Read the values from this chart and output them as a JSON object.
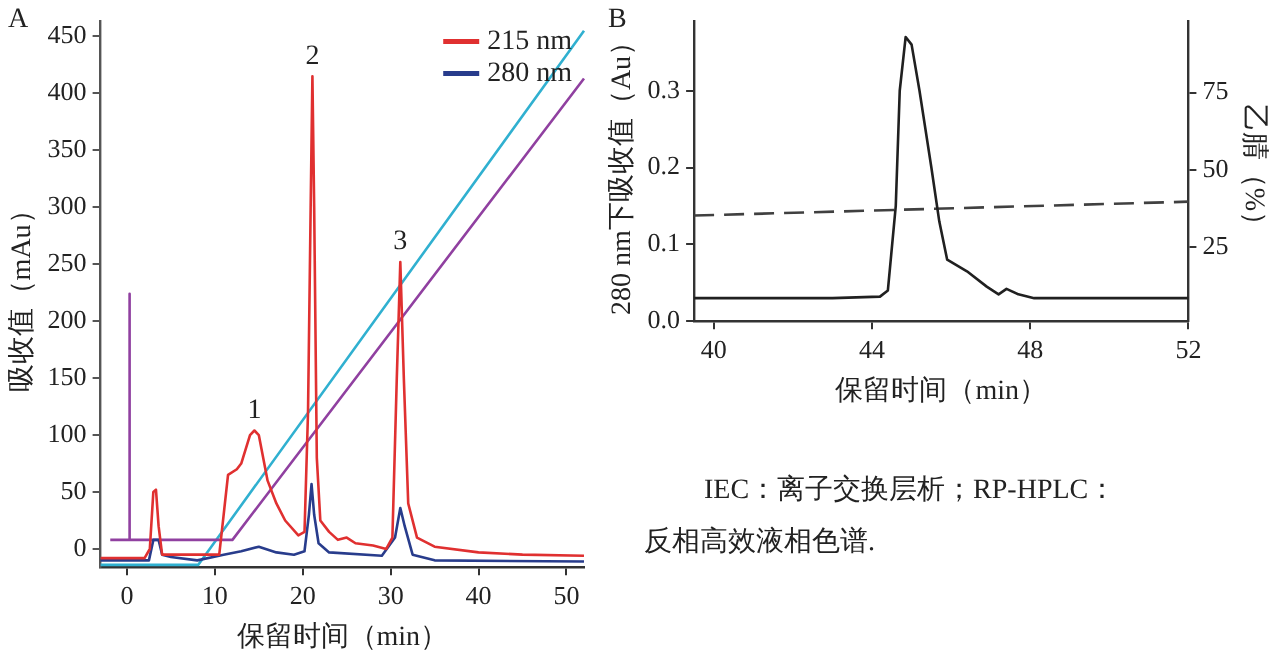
{
  "chart_data": [
    {
      "type": "line",
      "xlabel": "保留时间（min）",
      "ylabel": "吸收值（mAu）",
      "xlim": [
        -3,
        52
      ],
      "ylim": [
        -16,
        463
      ],
      "xticks": [
        0,
        10,
        20,
        30,
        40,
        50
      ],
      "yticks": [
        0,
        50,
        100,
        150,
        200,
        250,
        300,
        350,
        400,
        450
      ],
      "grid": false,
      "legend": "top right",
      "marker": "none",
      "annotations": [
        "A",
        {
          "text": "1",
          "x": 14.5,
          "y": 104
        },
        {
          "text": "2",
          "x": 21.1,
          "y": 415
        },
        {
          "text": "3",
          "x": 31.1,
          "y": 252
        }
      ],
      "series": [
        {
          "name": "215 nm",
          "color": "#e03030",
          "x": [
            -3,
            2,
            2.6,
            3,
            3.3,
            3.6,
            4,
            5,
            10.5,
            11,
            11.5,
            12.5,
            13,
            14,
            14.5,
            15,
            16,
            17,
            18,
            19.5,
            20.2,
            20.6,
            20.9,
            21.1,
            21.3,
            21.6,
            22,
            23,
            24,
            25,
            26,
            28,
            29.5,
            30.2,
            30.7,
            31.1,
            31.5,
            32,
            33,
            35,
            40,
            45,
            52
          ],
          "values": [
            -8,
            -8,
            0,
            50,
            52,
            20,
            -5,
            -5,
            -5,
            30,
            65,
            70,
            75,
            100,
            104,
            100,
            60,
            40,
            25,
            12,
            15,
            120,
            300,
            415,
            300,
            80,
            25,
            15,
            8,
            10,
            5,
            3,
            0,
            10,
            150,
            252,
            150,
            40,
            10,
            2,
            -3,
            -5,
            -6
          ]
        },
        {
          "name": "280 nm",
          "color": "#283c8c",
          "x": [
            -3,
            2.5,
            3,
            3.6,
            4,
            5,
            8,
            11,
            13,
            15,
            17,
            19,
            20.2,
            20.7,
            21,
            21.3,
            21.8,
            23,
            29,
            30.5,
            31.1,
            31.6,
            32.5,
            35,
            52
          ],
          "values": [
            -10,
            -10,
            8,
            8,
            -5,
            -7,
            -10,
            -5,
            -2,
            2,
            -3,
            -5,
            -2,
            30,
            57,
            30,
            5,
            -3,
            -6,
            10,
            36,
            20,
            -5,
            -10,
            -11
          ]
        },
        {
          "color": "#9040a0",
          "x": [
            -1.9,
            0.3,
            0.3,
            0.3,
            12,
            52
          ],
          "values": [
            8,
            8,
            224,
            8,
            8,
            413
          ]
        },
        {
          "color": "#30b0d0",
          "x": [
            -3,
            8.1,
            52
          ],
          "values": [
            -14,
            -14,
            455
          ]
        }
      ]
    },
    {
      "type": "line",
      "xlabel": "保留时间（min）",
      "ylabel": "280 nm下吸收值（Au）",
      "y2label": "乙腈（%）",
      "xlim": [
        39.5,
        52
      ],
      "ylim": [
        0,
        0.39
      ],
      "y2lim": [
        1,
        98
      ],
      "xticks": [
        40,
        44,
        48,
        52
      ],
      "yticks": [
        {
          "value": 0,
          "label": "0.0"
        },
        0.1,
        0.2,
        0.3
      ],
      "y2ticks": [
        25,
        50,
        75
      ],
      "grid": false,
      "marker": "none",
      "annotations": [
        "B",
        "IEC：离子交换层析；RP-HPLC：",
        "反相高效液相色谱."
      ],
      "series": [
        {
          "color": "#202020",
          "x": [
            39.5,
            43,
            44.2,
            44.4,
            44.6,
            44.7,
            44.85,
            45,
            45.2,
            45.5,
            45.7,
            45.9,
            46.4,
            46.9,
            47.2,
            47.4,
            47.7,
            48.1,
            49,
            52
          ],
          "values": [
            0.03,
            0.03,
            0.032,
            0.04,
            0.15,
            0.3,
            0.37,
            0.36,
            0.3,
            0.2,
            0.13,
            0.08,
            0.065,
            0.045,
            0.035,
            0.042,
            0.035,
            0.03,
            0.03,
            0.03
          ]
        },
        {
          "color": "#404040",
          "axis": "y2",
          "line_style": "dashed",
          "x": [
            39.5,
            52
          ],
          "values": [
            35.2,
            39.7
          ]
        }
      ]
    }
  ]
}
